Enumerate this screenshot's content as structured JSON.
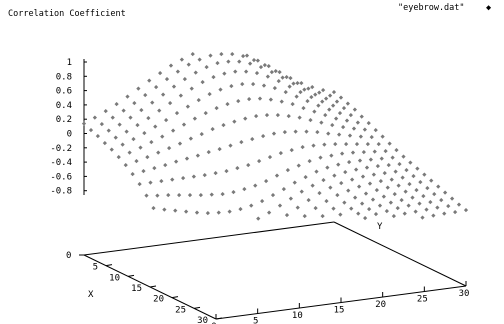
{
  "chart_data": {
    "type": "surface-scatter",
    "title": "Correlation Coefficient",
    "legend": {
      "label": "\"eyebrow.dat\"",
      "symbol": "◆",
      "placement": "top-right"
    },
    "x_label": "X",
    "y_label": "Y",
    "z_ticks": [
      1,
      0.8,
      0.6,
      0.4,
      0.2,
      0,
      -0.2,
      -0.4,
      -0.6,
      -0.8
    ],
    "z_tick_labels": [
      "1",
      "0.8",
      "0.6",
      "0.4",
      "0.2",
      "0",
      "-0.2",
      "-0.4",
      "-0.6",
      "-0.8"
    ],
    "z_base_label": "0",
    "x_ticks": [
      5,
      10,
      15,
      20,
      25,
      30
    ],
    "x_tick_labels": [
      "5",
      "10",
      "15",
      "20",
      "25",
      "30"
    ],
    "x_range": [
      0,
      30
    ],
    "y_ticks": [
      0,
      5,
      10,
      15,
      20,
      25,
      30
    ],
    "y_tick_labels": [
      "0",
      "5",
      "10",
      "15",
      "20",
      "25",
      "30"
    ],
    "y_range": [
      0,
      30
    ],
    "z_range": [
      -1,
      1
    ],
    "grid": false,
    "marker_color": "#7a7a7a",
    "surface": {
      "x_count": 20,
      "y_count": 24,
      "x_range": [
        0,
        30
      ],
      "y_range": [
        0,
        30
      ],
      "sample_grid_step": 1.5,
      "approximate_samples": [
        {
          "x": 0,
          "y": 0,
          "z": 0.1
        },
        {
          "x": 0,
          "y": 6,
          "z": 0.25
        },
        {
          "x": 0,
          "y": 12,
          "z": 0.55
        },
        {
          "x": 0,
          "y": 18,
          "z": 0.7
        },
        {
          "x": 0,
          "y": 24,
          "z": 0.4
        },
        {
          "x": 0,
          "y": 30,
          "z": 0.2
        },
        {
          "x": 8,
          "y": 0,
          "z": -0.35
        },
        {
          "x": 8,
          "y": 8,
          "z": 0.2
        },
        {
          "x": 8,
          "y": 16,
          "z": 0.45
        },
        {
          "x": 8,
          "y": 24,
          "z": 0.15
        },
        {
          "x": 8,
          "y": 30,
          "z": -0.15
        },
        {
          "x": 15,
          "y": 0,
          "z": -0.75
        },
        {
          "x": 15,
          "y": 10,
          "z": -0.2
        },
        {
          "x": 15,
          "y": 15,
          "z": 0.05
        },
        {
          "x": 15,
          "y": 24,
          "z": -0.35
        },
        {
          "x": 15,
          "y": 30,
          "z": -0.5
        },
        {
          "x": 22,
          "y": 0,
          "z": -0.9
        },
        {
          "x": 22,
          "y": 10,
          "z": -0.6
        },
        {
          "x": 22,
          "y": 20,
          "z": -0.5
        },
        {
          "x": 22,
          "y": 30,
          "z": -0.45
        },
        {
          "x": 30,
          "y": 0,
          "z": -0.8
        },
        {
          "x": 30,
          "y": 15,
          "z": -0.5
        },
        {
          "x": 30,
          "y": 30,
          "z": -0.3
        }
      ]
    }
  }
}
